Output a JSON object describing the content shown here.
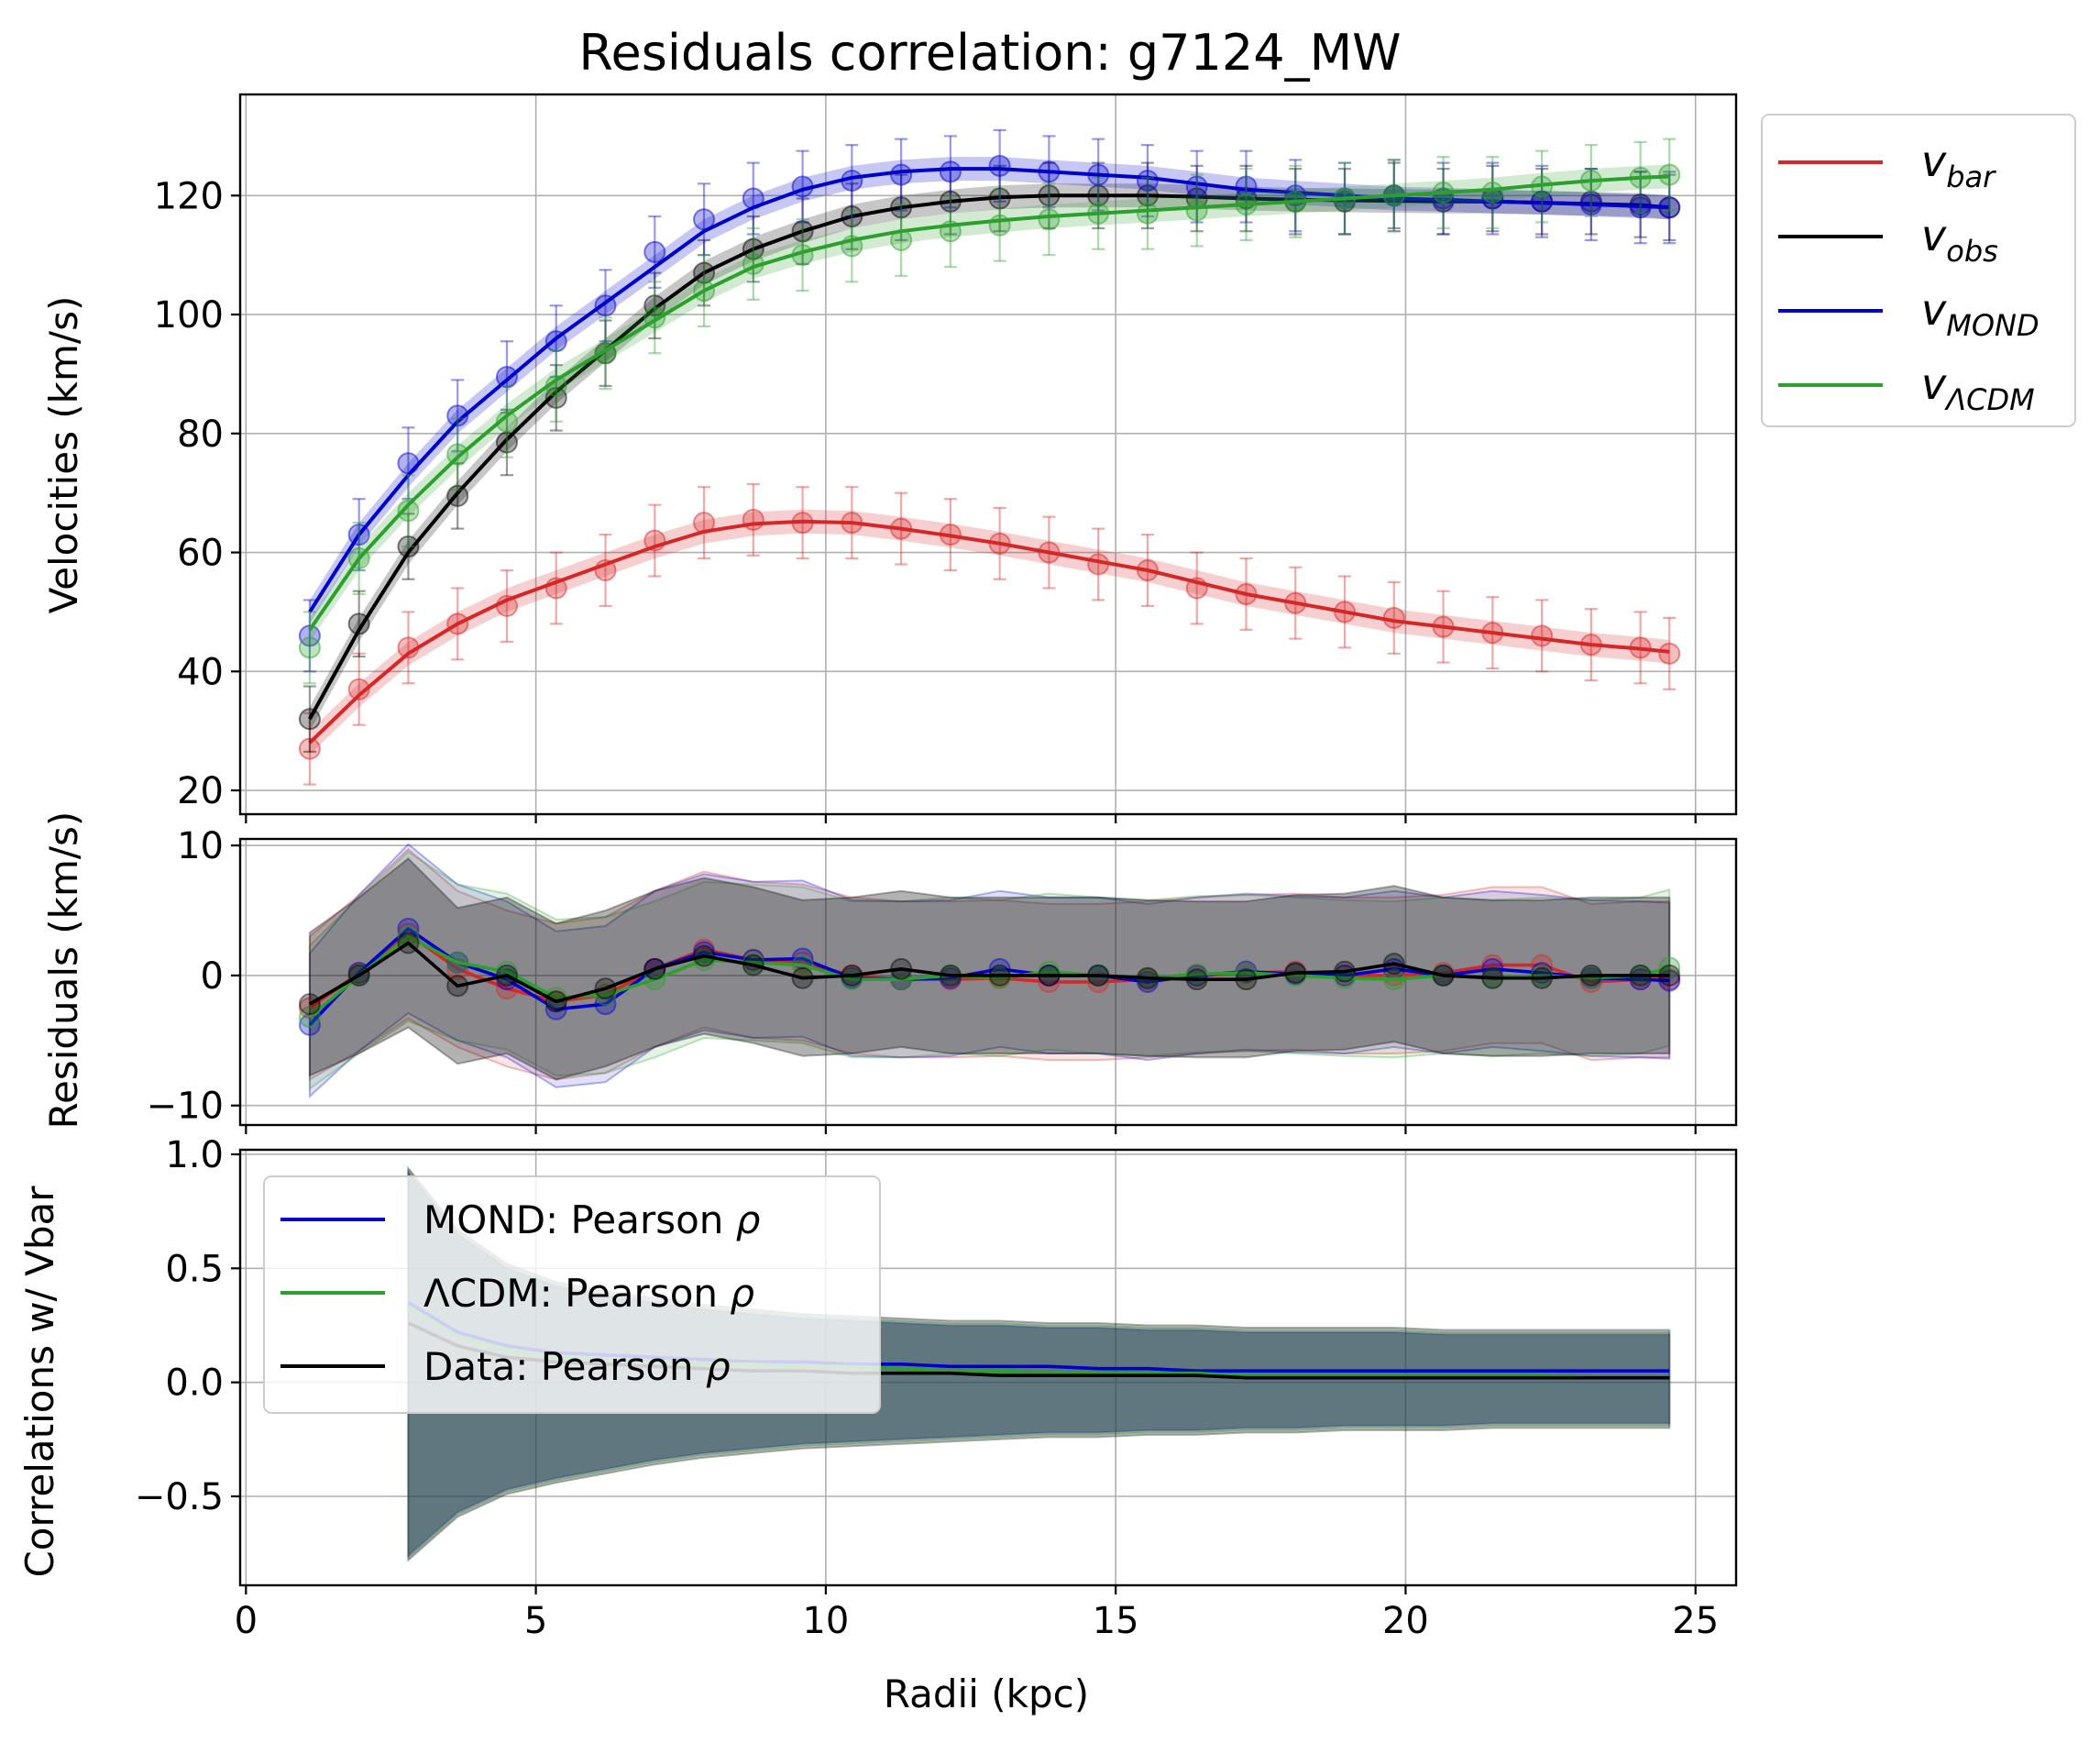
{
  "chart_data": [
    {
      "type": "line",
      "title": "Residuals correlation: g7124_MW",
      "xlabel": "",
      "ylabel": "Velocities (km/s)",
      "xlim": [
        -0.1,
        25.7
      ],
      "ylim": [
        16,
        137
      ],
      "xticks": [
        0,
        5,
        10,
        15,
        20,
        25
      ],
      "yticks": [
        20,
        40,
        60,
        80,
        100,
        120
      ],
      "grid": true,
      "legend": "outside-right",
      "x": [
        1.1,
        1.95,
        2.8,
        3.65,
        4.5,
        5.35,
        6.2,
        7.05,
        7.9,
        8.75,
        9.6,
        10.45,
        11.3,
        12.15,
        13.0,
        13.85,
        14.7,
        15.55,
        16.4,
        17.25,
        18.1,
        18.95,
        19.8,
        20.65,
        21.5,
        22.35,
        23.2,
        24.05,
        24.55
      ],
      "error_bar": 5.5,
      "series": [
        {
          "name": "v_bar",
          "label_main": "v",
          "label_sub": "bar",
          "color": "#d62728",
          "error": 6,
          "values": [
            28,
            36,
            43,
            48,
            52,
            55,
            58,
            61,
            63.5,
            64.8,
            65.2,
            65,
            64,
            62.8,
            61.5,
            60,
            58.5,
            57,
            55,
            53,
            51.5,
            50,
            48.5,
            47.5,
            46.5,
            45.5,
            44.5,
            43.8,
            43.3
          ],
          "markers": [
            27,
            37,
            44,
            48,
            51,
            54,
            57,
            62,
            65,
            65.5,
            65,
            65,
            64,
            63,
            61.5,
            60,
            58,
            57,
            54,
            53,
            51.5,
            50,
            49,
            47.5,
            46.5,
            46,
            44.5,
            44,
            43
          ]
        },
        {
          "name": "v_obs",
          "label_main": "v",
          "label_sub": "obs",
          "color": "#000000",
          "error": 5.5,
          "values": [
            32,
            47,
            60,
            70,
            79,
            87,
            94,
            101,
            107,
            111,
            114,
            116.5,
            118,
            119,
            119.7,
            120,
            120,
            120,
            119.8,
            119.5,
            119.3,
            119.2,
            119.1,
            119,
            119,
            118.8,
            118.6,
            118.4,
            118
          ],
          "markers": [
            32,
            48,
            61,
            69.5,
            78.5,
            86,
            93.5,
            101.5,
            107,
            111,
            114,
            116.5,
            118,
            119,
            119.5,
            120,
            120,
            120,
            119.5,
            119.5,
            119,
            119,
            120,
            119,
            119.5,
            119,
            119,
            118.5,
            118
          ]
        },
        {
          "name": "v_MOND",
          "label_main": "v",
          "label_sub": "MOND",
          "color": "#0000cc",
          "error": 6,
          "values": [
            50,
            63,
            73,
            82,
            89,
            96,
            102,
            108,
            114,
            118,
            121,
            123,
            124,
            124.5,
            124.5,
            124,
            123.5,
            123,
            122,
            121,
            120.5,
            120,
            119.5,
            119.3,
            119,
            118.8,
            118.5,
            118.2,
            118
          ],
          "markers": [
            46,
            63,
            75,
            83,
            89.5,
            95.5,
            101.5,
            110.5,
            116,
            119.5,
            121.5,
            122.5,
            123.5,
            124,
            125,
            124,
            123.5,
            122.5,
            121.5,
            121.5,
            120,
            119.5,
            120,
            119.5,
            119.5,
            119,
            118.5,
            118,
            118
          ]
        },
        {
          "name": "v_ΛCDM",
          "label_main": "v",
          "label_sub": "ΛCDM",
          "color": "#2ca02c",
          "error": 6,
          "values": [
            47,
            59,
            68,
            76,
            83,
            89,
            94,
            99,
            104,
            108,
            110.5,
            112.5,
            114,
            115,
            115.8,
            116.5,
            117,
            117.5,
            118,
            118.5,
            119,
            119.5,
            120,
            120.5,
            121,
            121.8,
            122.5,
            123,
            123.2
          ],
          "markers": [
            44,
            59,
            67,
            76.5,
            82,
            88,
            93.5,
            99.5,
            104,
            108.5,
            110,
            111.5,
            112.5,
            114,
            115,
            116,
            117,
            117,
            117.5,
            118.5,
            119,
            119.5,
            120,
            120.5,
            120.5,
            121.5,
            122.5,
            123,
            123.5
          ]
        }
      ]
    },
    {
      "type": "line",
      "title": "",
      "xlabel": "",
      "ylabel": "Residuals (km/s)",
      "xlim": [
        -0.1,
        25.7
      ],
      "ylim": [
        -11.5,
        10.5
      ],
      "xticks": [
        0,
        5,
        10,
        15,
        20,
        25
      ],
      "yticks": [
        -10,
        0,
        10
      ],
      "grid": true,
      "band_halfwidth": [
        5.5,
        6.0,
        6.5,
        6.0,
        6.0,
        6.0,
        6.0,
        6.0,
        6.0,
        6.0,
        6.0,
        6.0,
        6.0,
        6.0,
        6.0,
        6.0,
        6.0,
        6.0,
        6.0,
        6.0,
        6.0,
        6.0,
        6.0,
        6.0,
        6.0,
        6.0,
        6.0,
        6.0,
        6.0
      ],
      "series": [
        {
          "name": "v_bar",
          "color": "#d62728",
          "values": [
            -2.5,
            0.2,
            3.2,
            0.5,
            -1.0,
            -2.0,
            -1.5,
            0.5,
            2.0,
            1.2,
            1.0,
            0.0,
            -0.3,
            -0.3,
            -0.2,
            -0.5,
            -0.5,
            -0.3,
            0.0,
            0.2,
            0.3,
            0.0,
            0.0,
            0.2,
            0.8,
            0.8,
            -0.5,
            -0.3,
            -0.3
          ]
        },
        {
          "name": "v_MOND",
          "color": "#0000cc",
          "values": [
            -3.8,
            0.2,
            3.6,
            1.0,
            -0.3,
            -2.6,
            -2.2,
            0.5,
            1.8,
            1.2,
            1.3,
            -0.2,
            -0.3,
            -0.2,
            0.5,
            0.0,
            0.0,
            -0.5,
            0.0,
            0.3,
            0.1,
            0.0,
            0.5,
            0.0,
            0.5,
            0.2,
            -0.2,
            -0.3,
            -0.4
          ]
        },
        {
          "name": "v_ΛCDM",
          "color": "#2ca02c",
          "values": [
            -3.2,
            0.0,
            3.0,
            1.0,
            0.3,
            -1.7,
            -1.5,
            -0.3,
            1.2,
            1.0,
            0.8,
            -0.3,
            -0.3,
            0.0,
            -0.2,
            0.3,
            0.0,
            -0.2,
            0.1,
            0.2,
            0.0,
            -0.2,
            -0.3,
            0.0,
            -0.2,
            0.0,
            -0.2,
            0.0,
            0.6
          ]
        },
        {
          "name": "v_obs",
          "color": "#000000",
          "values": [
            -2.2,
            0.0,
            2.5,
            -0.8,
            0.0,
            -2.0,
            -1.0,
            0.5,
            1.5,
            0.8,
            -0.2,
            0.0,
            0.5,
            0.0,
            0.0,
            0.0,
            0.0,
            -0.2,
            -0.3,
            -0.3,
            0.2,
            0.3,
            0.9,
            0.0,
            -0.2,
            -0.2,
            0.0,
            0.0,
            0.0
          ]
        }
      ]
    },
    {
      "type": "line",
      "title": "",
      "xlabel": "Radii (kpc)",
      "ylabel": "Correlations w/ Vbar",
      "xlim": [
        -0.1,
        25.7
      ],
      "ylim": [
        -0.89,
        1.02
      ],
      "xticks": [
        0,
        5,
        10,
        15,
        20,
        25
      ],
      "xticklabels": [
        "0",
        "5",
        "10",
        "15",
        "20",
        "25"
      ],
      "yticks": [
        -0.5,
        0.0,
        0.5,
        1.0
      ],
      "yticklabels": [
        "−0.5",
        "0.0",
        "0.5",
        "1.0"
      ],
      "grid": true,
      "legend": "top-left",
      "x": [
        2.8,
        3.65,
        4.5,
        5.35,
        6.2,
        7.05,
        7.9,
        8.75,
        9.6,
        10.45,
        11.3,
        12.15,
        13.0,
        13.85,
        14.7,
        15.55,
        16.4,
        17.25,
        18.1,
        18.95,
        19.8,
        20.65,
        21.5,
        22.35,
        23.2,
        24.05,
        24.55
      ],
      "band_upper": [
        0.92,
        0.65,
        0.5,
        0.42,
        0.38,
        0.35,
        0.32,
        0.3,
        0.28,
        0.27,
        0.26,
        0.25,
        0.25,
        0.24,
        0.24,
        0.23,
        0.23,
        0.22,
        0.22,
        0.22,
        0.22,
        0.21,
        0.21,
        0.21,
        0.21,
        0.21,
        0.21
      ],
      "band_lower": [
        -0.76,
        -0.57,
        -0.47,
        -0.42,
        -0.38,
        -0.34,
        -0.31,
        -0.29,
        -0.27,
        -0.26,
        -0.25,
        -0.24,
        -0.23,
        -0.22,
        -0.22,
        -0.21,
        -0.21,
        -0.2,
        -0.2,
        -0.19,
        -0.19,
        -0.19,
        -0.18,
        -0.18,
        -0.18,
        -0.18,
        -0.18
      ],
      "series": [
        {
          "name": "MOND: Pearson ρ",
          "legend_text": "MOND: Pearson ",
          "legend_symbol": "ρ",
          "color": "#0000cc",
          "values": [
            0.35,
            0.22,
            0.16,
            0.13,
            0.12,
            0.11,
            0.1,
            0.09,
            0.09,
            0.08,
            0.08,
            0.07,
            0.07,
            0.07,
            0.06,
            0.06,
            0.05,
            0.05,
            0.05,
            0.05,
            0.05,
            0.05,
            0.05,
            0.05,
            0.05,
            0.05,
            0.05
          ]
        },
        {
          "name": "ΛCDM: Pearson ρ",
          "legend_text": "ΛCDM: Pearson ",
          "legend_symbol": "ρ",
          "color": "#2ca02c",
          "values": [
            0.33,
            0.2,
            0.14,
            0.11,
            0.1,
            0.09,
            0.08,
            0.08,
            0.07,
            0.07,
            0.06,
            0.05,
            0.05,
            0.04,
            0.04,
            0.04,
            0.04,
            0.03,
            0.03,
            0.03,
            0.03,
            0.03,
            0.03,
            0.03,
            0.02,
            0.02,
            0.02
          ]
        },
        {
          "name": "Data: Pearson ρ",
          "legend_text": "Data: Pearson ",
          "legend_symbol": "ρ",
          "color": "#000000",
          "values": [
            0.26,
            0.16,
            0.11,
            0.09,
            0.08,
            0.07,
            0.06,
            0.05,
            0.05,
            0.04,
            0.04,
            0.04,
            0.03,
            0.03,
            0.03,
            0.03,
            0.03,
            0.02,
            0.02,
            0.02,
            0.02,
            0.02,
            0.02,
            0.02,
            0.02,
            0.02,
            0.02
          ]
        }
      ]
    }
  ]
}
